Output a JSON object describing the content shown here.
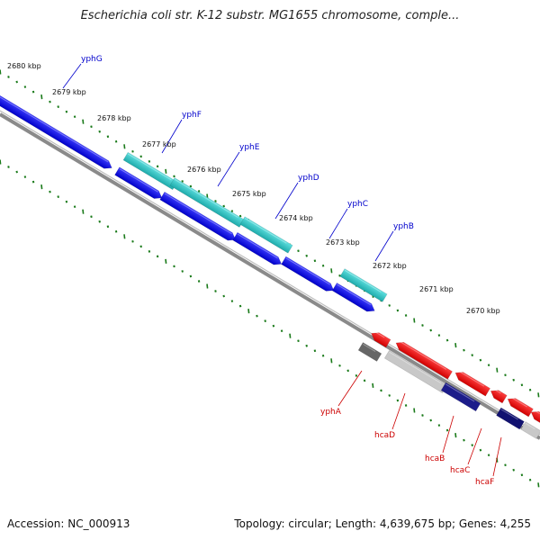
{
  "title": "Escherichia coli str. K-12 substr. MG1655 chromosome, comple...",
  "footer": {
    "accession": "Accession: NC_000913",
    "summary": "Topology: circular; Length: 4,639,675 bp; Genes: 4,255"
  },
  "scale_labels": [
    "2680 kbp",
    "2679 kbp",
    "2678 kbp",
    "2677 kbp",
    "2676 kbp",
    "2675 kbp",
    "2674 kbp",
    "2673 kbp",
    "2672 kbp",
    "2671 kbp",
    "2670 kbp"
  ],
  "forward_genes": [
    "yphG",
    "yphF",
    "yphE",
    "yphD",
    "yphC",
    "yphB"
  ],
  "reverse_genes": [
    "yphA",
    "hcaD",
    "hcaB",
    "hcaC",
    "hcaF"
  ],
  "colors": {
    "forward_gene_label": "#0000cc",
    "reverse_gene_label": "#cc0000",
    "forward_cds": "#1a1aee",
    "forward_cds_cyan": "#2ec8c8",
    "reverse_cds": "#ee1111",
    "scale_tick": "#1a7a1a"
  }
}
